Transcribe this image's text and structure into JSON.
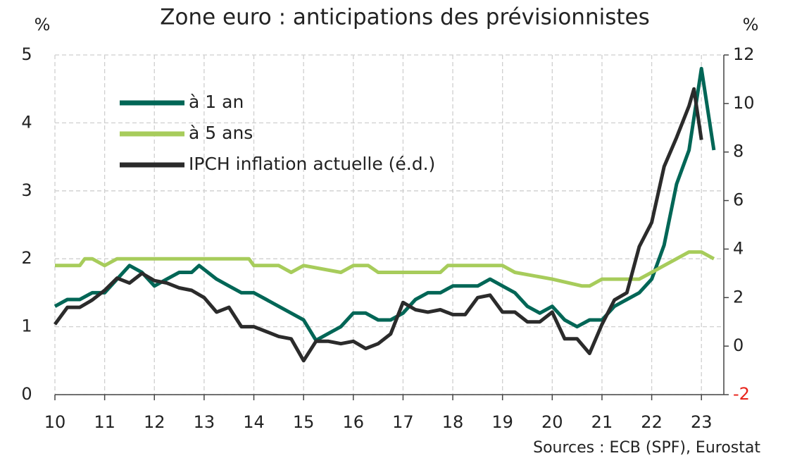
{
  "chart_data": {
    "type": "line",
    "title": "Zone euro : anticipations des prévisionnistes",
    "y_unit": "%",
    "y2_unit": "%",
    "source": "Sources : ECB (SPF), Eurostat",
    "xlim": [
      10,
      23.45
    ],
    "xticks": [
      10,
      11,
      12,
      13,
      14,
      15,
      16,
      17,
      18,
      19,
      20,
      21,
      22,
      23
    ],
    "ylim": [
      0,
      5
    ],
    "yticks": [
      0,
      1,
      2,
      3,
      4,
      5
    ],
    "y2lim": [
      -2,
      12
    ],
    "y2ticks": [
      -2,
      0,
      2,
      4,
      6,
      8,
      10,
      12
    ],
    "y2_negative_tick_color": "#e8231a",
    "grid": true,
    "legend": "upper left",
    "series": [
      {
        "name": "à 1 an",
        "color": "#006656",
        "x": [
          10,
          10.25,
          10.5,
          10.75,
          11,
          11.25,
          11.5,
          11.75,
          12,
          12.25,
          12.5,
          12.75,
          12.9,
          13.25,
          13.5,
          13.75,
          14,
          14.25,
          14.5,
          14.75,
          15,
          15.25,
          15.5,
          15.75,
          16,
          16.25,
          16.5,
          16.75,
          17,
          17.25,
          17.5,
          17.75,
          18,
          18.25,
          18.5,
          18.75,
          19,
          19.25,
          19.5,
          19.75,
          20,
          20.25,
          20.5,
          20.75,
          21,
          21.25,
          21.5,
          21.75,
          22,
          22.25,
          22.5,
          22.75,
          23,
          23.25
        ],
        "values": [
          1.3,
          1.4,
          1.4,
          1.5,
          1.5,
          1.7,
          1.9,
          1.8,
          1.6,
          1.7,
          1.8,
          1.8,
          1.9,
          1.7,
          1.6,
          1.5,
          1.5,
          1.4,
          1.3,
          1.2,
          1.1,
          0.8,
          0.9,
          1.0,
          1.2,
          1.2,
          1.1,
          1.1,
          1.2,
          1.4,
          1.5,
          1.5,
          1.6,
          1.6,
          1.6,
          1.7,
          1.6,
          1.5,
          1.3,
          1.2,
          1.3,
          1.1,
          1.0,
          1.1,
          1.1,
          1.3,
          1.4,
          1.5,
          1.7,
          2.2,
          3.1,
          3.6,
          4.8,
          3.6
        ]
      },
      {
        "name": "à 5 ans",
        "color": "#a7cc5b",
        "x": [
          10,
          10.5,
          10.6,
          10.75,
          11,
          11.25,
          13.9,
          14,
          14.5,
          14.75,
          15,
          15.75,
          16,
          16.3,
          16.5,
          17.75,
          17.9,
          19,
          19.25,
          20,
          20.6,
          20.75,
          21,
          21.75,
          22,
          22.25,
          22.5,
          22.75,
          23,
          23.25
        ],
        "values": [
          1.9,
          1.9,
          2.0,
          2.0,
          1.9,
          2.0,
          2.0,
          1.9,
          1.9,
          1.8,
          1.9,
          1.8,
          1.9,
          1.9,
          1.8,
          1.8,
          1.9,
          1.9,
          1.8,
          1.7,
          1.6,
          1.6,
          1.7,
          1.7,
          1.8,
          1.9,
          2.0,
          2.1,
          2.1,
          2.0
        ]
      },
      {
        "name": "IPCH inflation actuelle (é.d.)",
        "color": "#2b2b2b",
        "axis": "y2",
        "x": [
          10,
          10.25,
          10.5,
          10.75,
          11,
          11.25,
          11.5,
          11.75,
          12,
          12.25,
          12.5,
          12.75,
          13,
          13.25,
          13.5,
          13.75,
          14,
          14.25,
          14.5,
          14.75,
          15,
          15.25,
          15.5,
          15.75,
          16,
          16.25,
          16.5,
          16.75,
          17,
          17.25,
          17.5,
          17.75,
          18,
          18.25,
          18.5,
          18.75,
          19,
          19.25,
          19.5,
          19.75,
          20,
          20.25,
          20.5,
          20.75,
          21,
          21.25,
          21.5,
          21.75,
          22,
          22.25,
          22.5,
          22.75,
          22.85,
          23
        ],
        "values": [
          0.9,
          1.6,
          1.6,
          1.9,
          2.3,
          2.8,
          2.6,
          3.0,
          2.7,
          2.6,
          2.4,
          2.3,
          2.0,
          1.4,
          1.6,
          0.8,
          0.8,
          0.6,
          0.4,
          0.3,
          -0.6,
          0.2,
          0.2,
          0.1,
          0.2,
          -0.1,
          0.1,
          0.5,
          1.8,
          1.5,
          1.4,
          1.5,
          1.3,
          1.3,
          2.0,
          2.1,
          1.4,
          1.4,
          1.0,
          1.0,
          1.4,
          0.3,
          0.3,
          -0.3,
          0.9,
          1.9,
          2.2,
          4.1,
          5.1,
          7.4,
          8.6,
          9.9,
          10.6,
          8.5
        ]
      }
    ]
  }
}
